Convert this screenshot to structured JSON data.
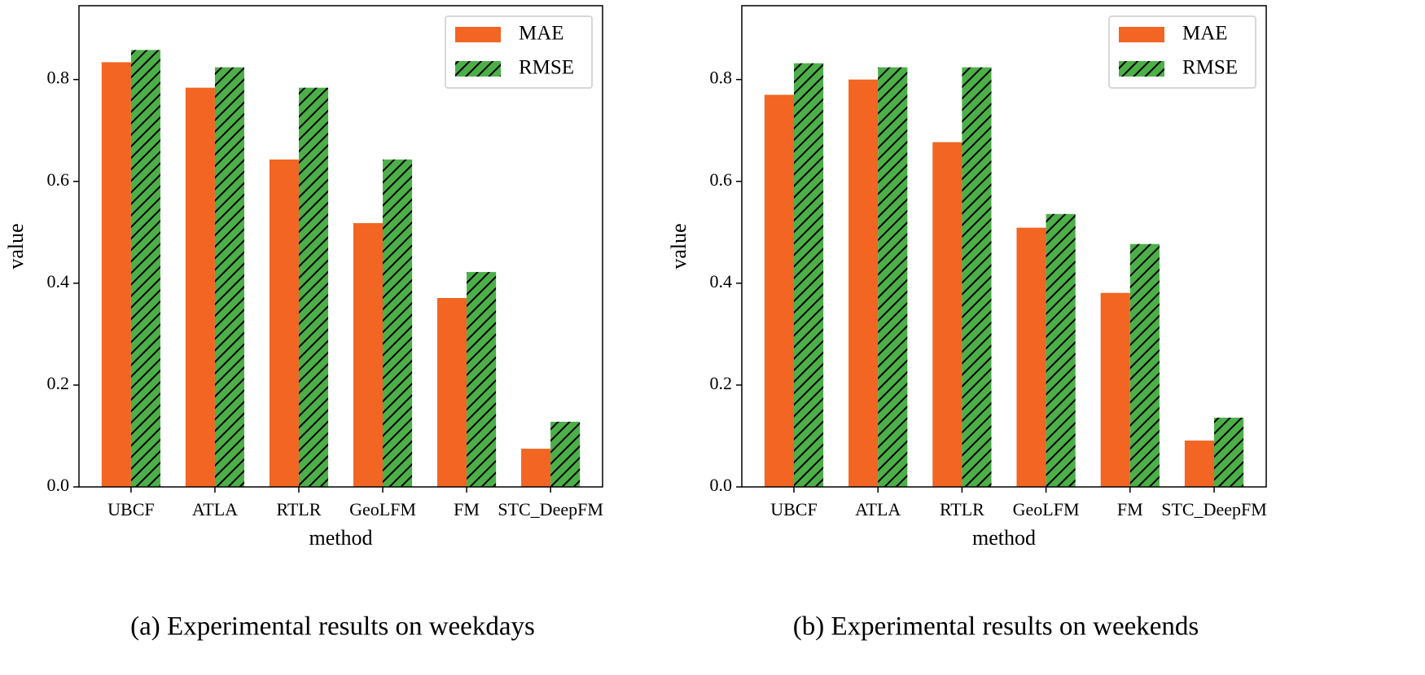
{
  "chart_data": [
    {
      "type": "bar",
      "caption": "(a) Experimental results on weekdays",
      "x_label": "method",
      "y_label": "value",
      "categories": [
        "UBCF",
        "ATLA",
        "RTLR",
        "GeoLFM",
        "FM",
        "STC_DeepFM"
      ],
      "series": [
        {
          "name": "MAE",
          "color": "#f26522",
          "values": [
            0.834,
            0.784,
            0.643,
            0.518,
            0.371,
            0.075
          ]
        },
        {
          "name": "RMSE",
          "color": "#4caf48",
          "hatch": "//",
          "values": [
            0.858,
            0.824,
            0.784,
            0.643,
            0.422,
            0.128
          ]
        }
      ],
      "ylim": [
        0,
        0.945
      ],
      "yticks": [
        {
          "value": 0,
          "label": "0.0"
        },
        0.2,
        0.4,
        0.6,
        0.8
      ],
      "legend": "upper right"
    },
    {
      "type": "bar",
      "caption": "(b) Experimental results on weekends",
      "x_label": "method",
      "y_label": "value",
      "categories": [
        "UBCF",
        "ATLA",
        "RTLR",
        "GeoLFM",
        "FM",
        "STC_DeepFM"
      ],
      "series": [
        {
          "name": "MAE",
          "color": "#f26522",
          "values": [
            0.77,
            0.8,
            0.677,
            0.509,
            0.381,
            0.091
          ]
        },
        {
          "name": "RMSE",
          "color": "#4caf48",
          "hatch": "//",
          "values": [
            0.832,
            0.824,
            0.824,
            0.536,
            0.477,
            0.136
          ]
        }
      ],
      "ylim": [
        0,
        0.945
      ],
      "yticks": [
        {
          "value": 0,
          "label": "0.0"
        },
        0.2,
        0.4,
        0.6,
        0.8
      ],
      "legend": "upper right"
    }
  ]
}
